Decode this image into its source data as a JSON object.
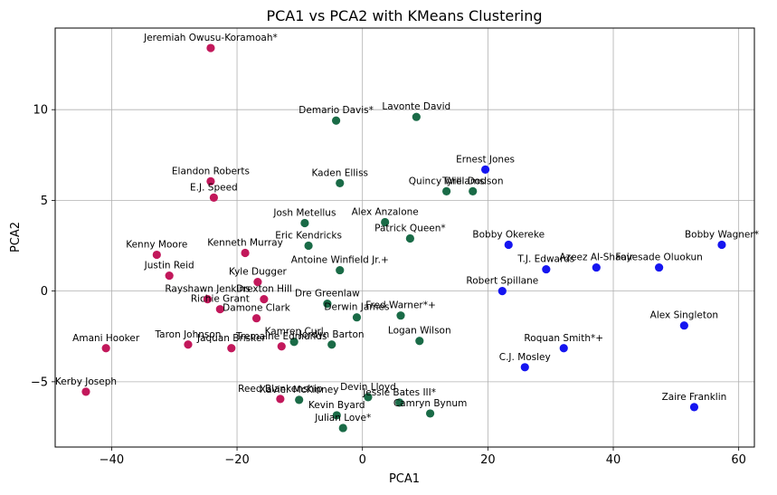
{
  "chart_data": {
    "type": "scatter",
    "title": "PCA1 vs PCA2 with KMeans Clustering",
    "xlabel": "PCA1",
    "ylabel": "PCA2",
    "xlim": [
      -49,
      62.5
    ],
    "ylim": [
      -8.6,
      14.5
    ],
    "xticks": [
      -40,
      -20,
      0,
      20,
      40,
      60
    ],
    "yticks": [
      -5,
      0,
      5,
      10
    ],
    "grid": true,
    "cluster_colors": [
      "#c2185b",
      "#1a6b47",
      "#1515f0"
    ],
    "points": [
      {
        "label": "Jeremiah Owusu-Koramoah*",
        "x": -24.2,
        "y": 13.4,
        "cluster": 0
      },
      {
        "label": "Elandon Roberts",
        "x": -24.2,
        "y": 6.05,
        "cluster": 0
      },
      {
        "label": "E.J. Speed",
        "x": -23.7,
        "y": 5.15,
        "cluster": 0
      },
      {
        "label": "Kenny Moore",
        "x": -32.8,
        "y": 2.0,
        "cluster": 0
      },
      {
        "label": "Kenneth Murray",
        "x": -18.7,
        "y": 2.1,
        "cluster": 0
      },
      {
        "label": "Justin Reid",
        "x": -30.8,
        "y": 0.85,
        "cluster": 0
      },
      {
        "label": "Kyle Dugger",
        "x": -16.7,
        "y": 0.5,
        "cluster": 0
      },
      {
        "label": "Rayshawn Jenkins",
        "x": -24.7,
        "y": -0.45,
        "cluster": 0
      },
      {
        "label": "Drexton Hill",
        "x": -15.7,
        "y": -0.45,
        "cluster": 0
      },
      {
        "label": "Richie Grant",
        "x": -22.7,
        "y": -1.0,
        "cluster": 0
      },
      {
        "label": "Damone Clark",
        "x": -16.9,
        "y": -1.5,
        "cluster": 0
      },
      {
        "label": "Amani Hooker",
        "x": -40.9,
        "y": -3.15,
        "cluster": 0
      },
      {
        "label": "Taron Johnson",
        "x": -27.8,
        "y": -2.95,
        "cluster": 0
      },
      {
        "label": "Jaquan Brisker",
        "x": -20.9,
        "y": -3.15,
        "cluster": 0
      },
      {
        "label": "Tremaine Edmunds",
        "x": -12.9,
        "y": -3.05,
        "cluster": 0
      },
      {
        "label": "Kerby Joseph",
        "x": -44.1,
        "y": -5.55,
        "cluster": 0
      },
      {
        "label": "Reed Blankenship",
        "x": -13.1,
        "y": -5.95,
        "cluster": 0
      },
      {
        "label": "Demario Davis*",
        "x": -4.2,
        "y": 9.4,
        "cluster": 1
      },
      {
        "label": "Lavonte David",
        "x": 8.6,
        "y": 9.6,
        "cluster": 1
      },
      {
        "label": "Kaden Elliss",
        "x": -3.6,
        "y": 5.95,
        "cluster": 1
      },
      {
        "label": "Quincy Williams",
        "x": 13.4,
        "y": 5.5,
        "cluster": 1
      },
      {
        "label": "Tyrel Dodson",
        "x": 17.6,
        "y": 5.5,
        "cluster": 1
      },
      {
        "label": "Josh Metellus",
        "x": -9.2,
        "y": 3.75,
        "cluster": 1
      },
      {
        "label": "Alex Anzalone",
        "x": 3.6,
        "y": 3.8,
        "cluster": 1
      },
      {
        "label": "Eric Kendricks",
        "x": -8.6,
        "y": 2.5,
        "cluster": 1
      },
      {
        "label": "Patrick Queen*",
        "x": 7.6,
        "y": 2.9,
        "cluster": 1
      },
      {
        "label": "Antoine Winfield Jr.+",
        "x": -3.6,
        "y": 1.15,
        "cluster": 1
      },
      {
        "label": "Dre Greenlaw",
        "x": -5.6,
        "y": -0.7,
        "cluster": 1
      },
      {
        "label": "Derwin James",
        "x": -0.9,
        "y": -1.45,
        "cluster": 1
      },
      {
        "label": "Fred Warner*+",
        "x": 6.1,
        "y": -1.35,
        "cluster": 1
      },
      {
        "label": "Kamren Curl",
        "x": -10.9,
        "y": -2.8,
        "cluster": 1
      },
      {
        "label": "Jordyn Barton",
        "x": -4.9,
        "y": -2.95,
        "cluster": 1
      },
      {
        "label": "Logan Wilson",
        "x": 9.1,
        "y": -2.75,
        "cluster": 1
      },
      {
        "label": "Xavier McKinney",
        "x": -10.1,
        "y": -6.0,
        "cluster": 1
      },
      {
        "label": "Devin Lloyd",
        "x": 0.9,
        "y": -5.85,
        "cluster": 1
      },
      {
        "label": "Jessie Bates III*",
        "x": 5.9,
        "y": -6.15,
        "cluster": 1
      },
      {
        "label": "Kevin Byard",
        "x": -4.1,
        "y": -6.85,
        "cluster": 1
      },
      {
        "label": "Camryn Bynum",
        "x": 10.8,
        "y": -6.75,
        "cluster": 1
      },
      {
        "label": "Julian Love*",
        "x": -3.1,
        "y": -7.55,
        "cluster": 1
      },
      {
        "label": "Ernest Jones",
        "x": 19.6,
        "y": 6.7,
        "cluster": 2
      },
      {
        "label": "Bobby Okereke",
        "x": 23.3,
        "y": 2.55,
        "cluster": 2
      },
      {
        "label": "T.J. Edwards",
        "x": 29.3,
        "y": 1.2,
        "cluster": 2
      },
      {
        "label": "Azeez Al-Shaair",
        "x": 37.3,
        "y": 1.3,
        "cluster": 2
      },
      {
        "label": "Foyesade Oluokun",
        "x": 47.3,
        "y": 1.3,
        "cluster": 2
      },
      {
        "label": "Bobby Wagner*",
        "x": 57.3,
        "y": 2.55,
        "cluster": 2
      },
      {
        "label": "Robert Spillane",
        "x": 22.3,
        "y": 0.0,
        "cluster": 2
      },
      {
        "label": "Alex Singleton",
        "x": 51.3,
        "y": -1.9,
        "cluster": 2
      },
      {
        "label": "Roquan Smith*+",
        "x": 32.1,
        "y": -3.15,
        "cluster": 2
      },
      {
        "label": "C.J. Mosley",
        "x": 25.9,
        "y": -4.2,
        "cluster": 2
      },
      {
        "label": "Zaire Franklin",
        "x": 52.9,
        "y": -6.4,
        "cluster": 2
      }
    ]
  }
}
